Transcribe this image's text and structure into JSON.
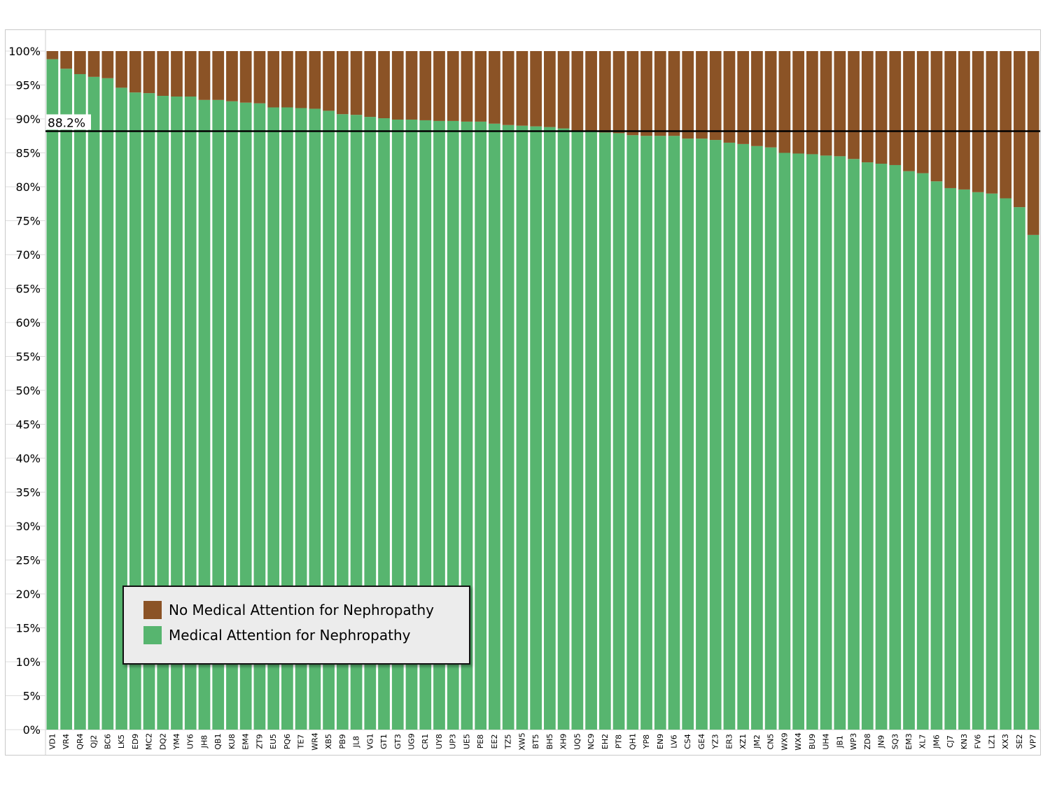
{
  "chart_data": {
    "type": "bar",
    "stacked": true,
    "title": "",
    "xlabel": "",
    "ylabel": "",
    "ylim": [
      0,
      100
    ],
    "y_tick_labels": [
      "0%",
      "5%",
      "10%",
      "15%",
      "20%",
      "25%",
      "30%",
      "35%",
      "40%",
      "45%",
      "50%",
      "55%",
      "60%",
      "65%",
      "70%",
      "75%",
      "80%",
      "85%",
      "90%",
      "95%",
      "100%"
    ],
    "categories": [
      "VD1",
      "VR4",
      "QR4",
      "QJ2",
      "BC6",
      "LK5",
      "ED9",
      "MC2",
      "DQ2",
      "YM4",
      "UY6",
      "JH8",
      "QB1",
      "KU8",
      "EM4",
      "ZT9",
      "EU5",
      "PQ6",
      "TE7",
      "WR4",
      "XB5",
      "PB9",
      "JL8",
      "VG1",
      "GT1",
      "GT3",
      "UG9",
      "CR1",
      "UY8",
      "UP3",
      "UE5",
      "PE8",
      "EE2",
      "TZ5",
      "XW5",
      "BT5",
      "BH5",
      "XH9",
      "UQ5",
      "NC9",
      "EH2",
      "PT8",
      "QH1",
      "YP8",
      "EN9",
      "LV6",
      "CS4",
      "GE4",
      "YZ3",
      "ER3",
      "XZ1",
      "JM2",
      "CN5",
      "WX9",
      "WX4",
      "BU9",
      "UH4",
      "JB1",
      "WP3",
      "ZD8",
      "JN9",
      "SQ3",
      "EM3",
      "XL7",
      "JM6",
      "CJ7",
      "KN3",
      "FV6",
      "LZ1",
      "XX3",
      "SE2",
      "VP7"
    ],
    "series": [
      {
        "name": "Medical Attention for Nephropathy",
        "color": "#57b56f",
        "values": [
          98.8,
          97.4,
          96.6,
          96.2,
          96.0,
          94.6,
          93.9,
          93.8,
          93.4,
          93.3,
          93.3,
          92.8,
          92.8,
          92.6,
          92.4,
          92.3,
          91.7,
          91.7,
          91.6,
          91.5,
          91.2,
          90.7,
          90.6,
          90.3,
          90.1,
          89.9,
          89.9,
          89.8,
          89.7,
          89.7,
          89.6,
          89.6,
          89.3,
          89.1,
          89.0,
          88.9,
          88.8,
          88.6,
          88.2,
          88.2,
          88.0,
          87.9,
          87.6,
          87.5,
          87.5,
          87.5,
          87.1,
          87.1,
          86.9,
          86.5,
          86.3,
          86.0,
          85.8,
          85.0,
          84.9,
          84.8,
          84.6,
          84.5,
          84.1,
          83.6,
          83.4,
          83.2,
          82.3,
          82.0,
          80.8,
          79.8,
          79.6,
          79.2,
          79.0,
          78.3,
          77.0,
          72.9
        ]
      },
      {
        "name": "No Medical Attention for Nephropathy",
        "color": "#8b5326",
        "values": [
          1.2,
          2.6,
          3.4,
          3.8,
          4.0,
          5.4,
          6.1,
          6.2,
          6.6,
          6.7,
          6.7,
          7.2,
          7.2,
          7.4,
          7.6,
          7.7,
          8.3,
          8.3,
          8.4,
          8.5,
          8.8,
          9.3,
          9.4,
          9.7,
          9.9,
          10.1,
          10.1,
          10.2,
          10.3,
          10.3,
          10.4,
          10.4,
          10.7,
          10.9,
          11.0,
          11.1,
          11.2,
          11.4,
          11.8,
          11.8,
          12.0,
          12.1,
          12.4,
          12.5,
          12.5,
          12.5,
          12.9,
          12.9,
          13.1,
          13.5,
          13.7,
          14.0,
          14.2,
          15.0,
          15.1,
          15.2,
          15.4,
          15.5,
          15.9,
          16.4,
          16.6,
          16.8,
          17.7,
          18.0,
          19.2,
          20.2,
          20.4,
          20.8,
          21.0,
          21.7,
          23.0,
          27.1
        ]
      }
    ],
    "reference_line": {
      "value": 88.2,
      "label": "88.2%",
      "color": "#000000"
    },
    "grid": true,
    "legend": {
      "position": "bottom-left",
      "entries": [
        {
          "label": "No Medical Attention for Nephropathy",
          "color": "#8b5326"
        },
        {
          "label": "Medical Attention for Nephropathy",
          "color": "#57b56f"
        }
      ]
    }
  }
}
